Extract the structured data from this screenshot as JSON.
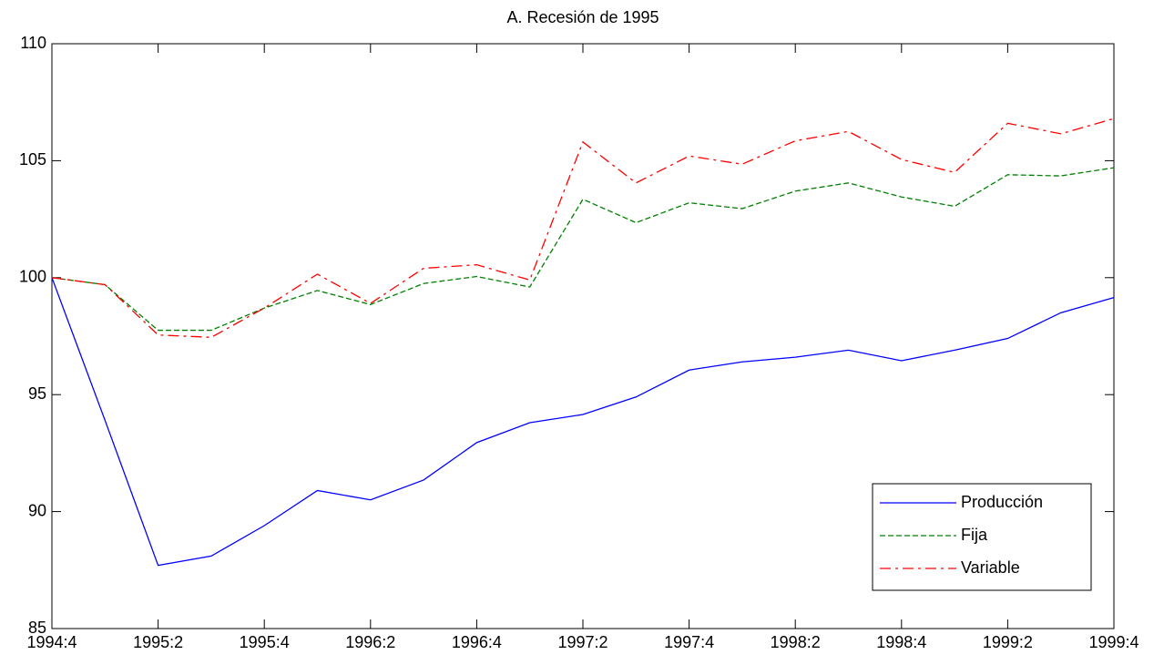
{
  "chart_data": {
    "type": "line",
    "title": "A. Recesión de 1995",
    "categories": [
      "1994:4",
      null,
      "1995:2",
      null,
      "1995:4",
      null,
      "1996:2",
      null,
      "1996:4",
      null,
      "1997:2",
      null,
      "1997:4",
      null,
      "1998:2",
      null,
      "1998:4",
      null,
      "1999:2",
      null,
      "1999:4"
    ],
    "series": [
      {
        "name": "Producción",
        "color": "#0000ff",
        "dash": "solid",
        "values": [
          100,
          93.9,
          87.7,
          88.1,
          89.4,
          90.9,
          90.5,
          91.35,
          92.95,
          93.8,
          94.15,
          94.9,
          96.05,
          96.4,
          96.6,
          96.9,
          96.45,
          96.9,
          97.4,
          98.5,
          99.15
        ]
      },
      {
        "name": "Fija",
        "color": "#008000",
        "dash": "dashed",
        "values": [
          100,
          99.7,
          97.75,
          97.75,
          98.7,
          99.45,
          98.85,
          99.75,
          100.05,
          99.6,
          103.35,
          102.35,
          103.2,
          102.95,
          103.7,
          104.05,
          103.45,
          103.05,
          104.4,
          104.35,
          104.7
        ]
      },
      {
        "name": "Variable",
        "color": "#ff0000",
        "dash": "dashdot",
        "values": [
          100,
          99.7,
          97.55,
          97.45,
          98.7,
          100.15,
          98.9,
          100.4,
          100.55,
          99.9,
          105.8,
          104.05,
          105.2,
          104.85,
          105.85,
          106.25,
          105.05,
          104.5,
          106.6,
          106.15,
          106.8
        ]
      }
    ],
    "ylim": [
      85,
      110
    ],
    "yticks": [
      85,
      90,
      95,
      100,
      105,
      110
    ],
    "grid": false,
    "legend": "lower right"
  }
}
